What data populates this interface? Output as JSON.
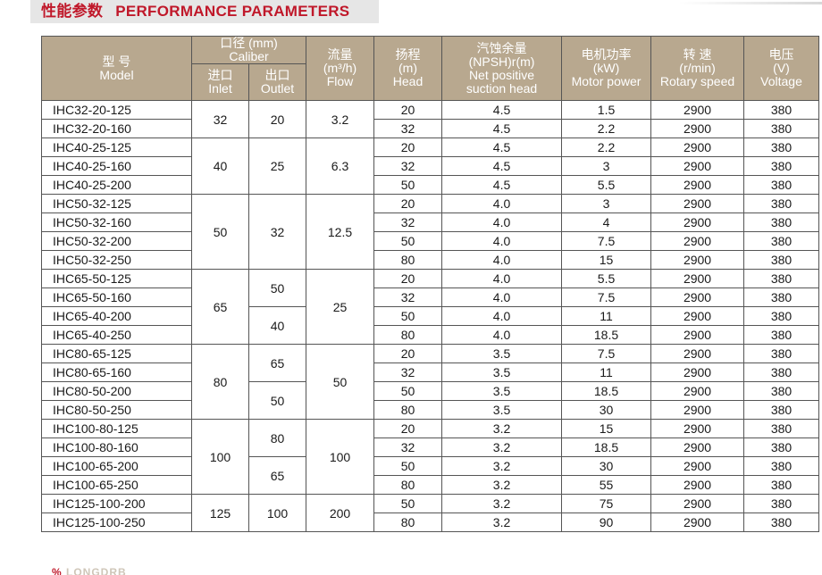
{
  "title": {
    "zh": "性能参数",
    "en": "PERFORMANCE PARAMETERS"
  },
  "columns": {
    "model": {
      "zh": "型 号",
      "en": "Model"
    },
    "caliber": {
      "zh": "口径 (mm)",
      "en": "Caliber",
      "inlet_zh": "进口",
      "inlet_en": "Inlet",
      "outlet_zh": "出口",
      "outlet_en": "Outlet"
    },
    "flow": {
      "zh": "流量",
      "unit": "(m³/h)",
      "en": "Flow"
    },
    "head": {
      "zh": "扬程",
      "unit": "(m)",
      "en": "Head"
    },
    "npsh": {
      "zh": "汽蚀余量",
      "unit": "(NPSH)r(m)",
      "en1": "Net positive",
      "en2": "suction head"
    },
    "power": {
      "zh": "电机功率",
      "unit": "(kW)",
      "en": "Motor power"
    },
    "speed": {
      "zh": "转 速",
      "unit": "(r/min)",
      "en": "Rotary speed"
    },
    "voltage": {
      "zh": "电压",
      "unit": "(V)",
      "en": "Voltage"
    }
  },
  "rows": [
    {
      "model": "IHC32-20-125",
      "inlet": "32",
      "outlet": "20",
      "flow": "3.2",
      "head": "20",
      "npsh": "4.5",
      "power": "1.5",
      "speed": "2900",
      "voltage": "380"
    },
    {
      "model": "IHC32-20-160",
      "inlet": "32",
      "outlet": "20",
      "flow": "3.2",
      "head": "32",
      "npsh": "4.5",
      "power": "2.2",
      "speed": "2900",
      "voltage": "380"
    },
    {
      "model": "IHC40-25-125",
      "inlet": "40",
      "outlet": "25",
      "flow": "6.3",
      "head": "20",
      "npsh": "4.5",
      "power": "2.2",
      "speed": "2900",
      "voltage": "380"
    },
    {
      "model": "IHC40-25-160",
      "inlet": "40",
      "outlet": "25",
      "flow": "6.3",
      "head": "32",
      "npsh": "4.5",
      "power": "3",
      "speed": "2900",
      "voltage": "380"
    },
    {
      "model": "IHC40-25-200",
      "inlet": "40",
      "outlet": "25",
      "flow": "6.3",
      "head": "50",
      "npsh": "4.5",
      "power": "5.5",
      "speed": "2900",
      "voltage": "380"
    },
    {
      "model": "IHC50-32-125",
      "inlet": "50",
      "outlet": "32",
      "flow": "12.5",
      "head": "20",
      "npsh": "4.0",
      "power": "3",
      "speed": "2900",
      "voltage": "380"
    },
    {
      "model": "IHC50-32-160",
      "inlet": "50",
      "outlet": "32",
      "flow": "12.5",
      "head": "32",
      "npsh": "4.0",
      "power": "4",
      "speed": "2900",
      "voltage": "380"
    },
    {
      "model": "IHC50-32-200",
      "inlet": "50",
      "outlet": "32",
      "flow": "12.5",
      "head": "50",
      "npsh": "4.0",
      "power": "7.5",
      "speed": "2900",
      "voltage": "380"
    },
    {
      "model": "IHC50-32-250",
      "inlet": "50",
      "outlet": "32",
      "flow": "12.5",
      "head": "80",
      "npsh": "4.0",
      "power": "15",
      "speed": "2900",
      "voltage": "380"
    },
    {
      "model": "IHC65-50-125",
      "inlet": "65",
      "outlet": "50",
      "flow": "25",
      "head": "20",
      "npsh": "4.0",
      "power": "5.5",
      "speed": "2900",
      "voltage": "380"
    },
    {
      "model": "IHC65-50-160",
      "inlet": "65",
      "outlet": "50",
      "flow": "25",
      "head": "32",
      "npsh": "4.0",
      "power": "7.5",
      "speed": "2900",
      "voltage": "380"
    },
    {
      "model": "IHC65-40-200",
      "inlet": "65",
      "outlet": "40",
      "flow": "25",
      "head": "50",
      "npsh": "4.0",
      "power": "11",
      "speed": "2900",
      "voltage": "380"
    },
    {
      "model": "IHC65-40-250",
      "inlet": "65",
      "outlet": "40",
      "flow": "25",
      "head": "80",
      "npsh": "4.0",
      "power": "18.5",
      "speed": "2900",
      "voltage": "380"
    },
    {
      "model": "IHC80-65-125",
      "inlet": "80",
      "outlet": "65",
      "flow": "50",
      "head": "20",
      "npsh": "3.5",
      "power": "7.5",
      "speed": "2900",
      "voltage": "380"
    },
    {
      "model": "IHC80-65-160",
      "inlet": "80",
      "outlet": "65",
      "flow": "50",
      "head": "32",
      "npsh": "3.5",
      "power": "11",
      "speed": "2900",
      "voltage": "380"
    },
    {
      "model": "IHC80-50-200",
      "inlet": "80",
      "outlet": "50",
      "flow": "50",
      "head": "50",
      "npsh": "3.5",
      "power": "18.5",
      "speed": "2900",
      "voltage": "380"
    },
    {
      "model": "IHC80-50-250",
      "inlet": "80",
      "outlet": "50",
      "flow": "50",
      "head": "80",
      "npsh": "3.5",
      "power": "30",
      "speed": "2900",
      "voltage": "380"
    },
    {
      "model": "IHC100-80-125",
      "inlet": "100",
      "outlet": "80",
      "flow": "100",
      "head": "20",
      "npsh": "3.2",
      "power": "15",
      "speed": "2900",
      "voltage": "380"
    },
    {
      "model": "IHC100-80-160",
      "inlet": "100",
      "outlet": "80",
      "flow": "100",
      "head": "32",
      "npsh": "3.2",
      "power": "18.5",
      "speed": "2900",
      "voltage": "380"
    },
    {
      "model": "IHC100-65-200",
      "inlet": "100",
      "outlet": "65",
      "flow": "100",
      "head": "50",
      "npsh": "3.2",
      "power": "30",
      "speed": "2900",
      "voltage": "380"
    },
    {
      "model": "IHC100-65-250",
      "inlet": "100",
      "outlet": "65",
      "flow": "100",
      "head": "80",
      "npsh": "3.2",
      "power": "55",
      "speed": "2900",
      "voltage": "380"
    },
    {
      "model": "IHC125-100-200",
      "inlet": "125",
      "outlet": "100",
      "flow": "200",
      "head": "50",
      "npsh": "3.2",
      "power": "75",
      "speed": "2900",
      "voltage": "380"
    },
    {
      "model": "IHC125-100-250",
      "inlet": "125",
      "outlet": "100",
      "flow": "200",
      "head": "80",
      "npsh": "3.2",
      "power": "90",
      "speed": "2900",
      "voltage": "380"
    }
  ],
  "footer": {
    "accent": "%",
    "text": "LONGDRB"
  }
}
